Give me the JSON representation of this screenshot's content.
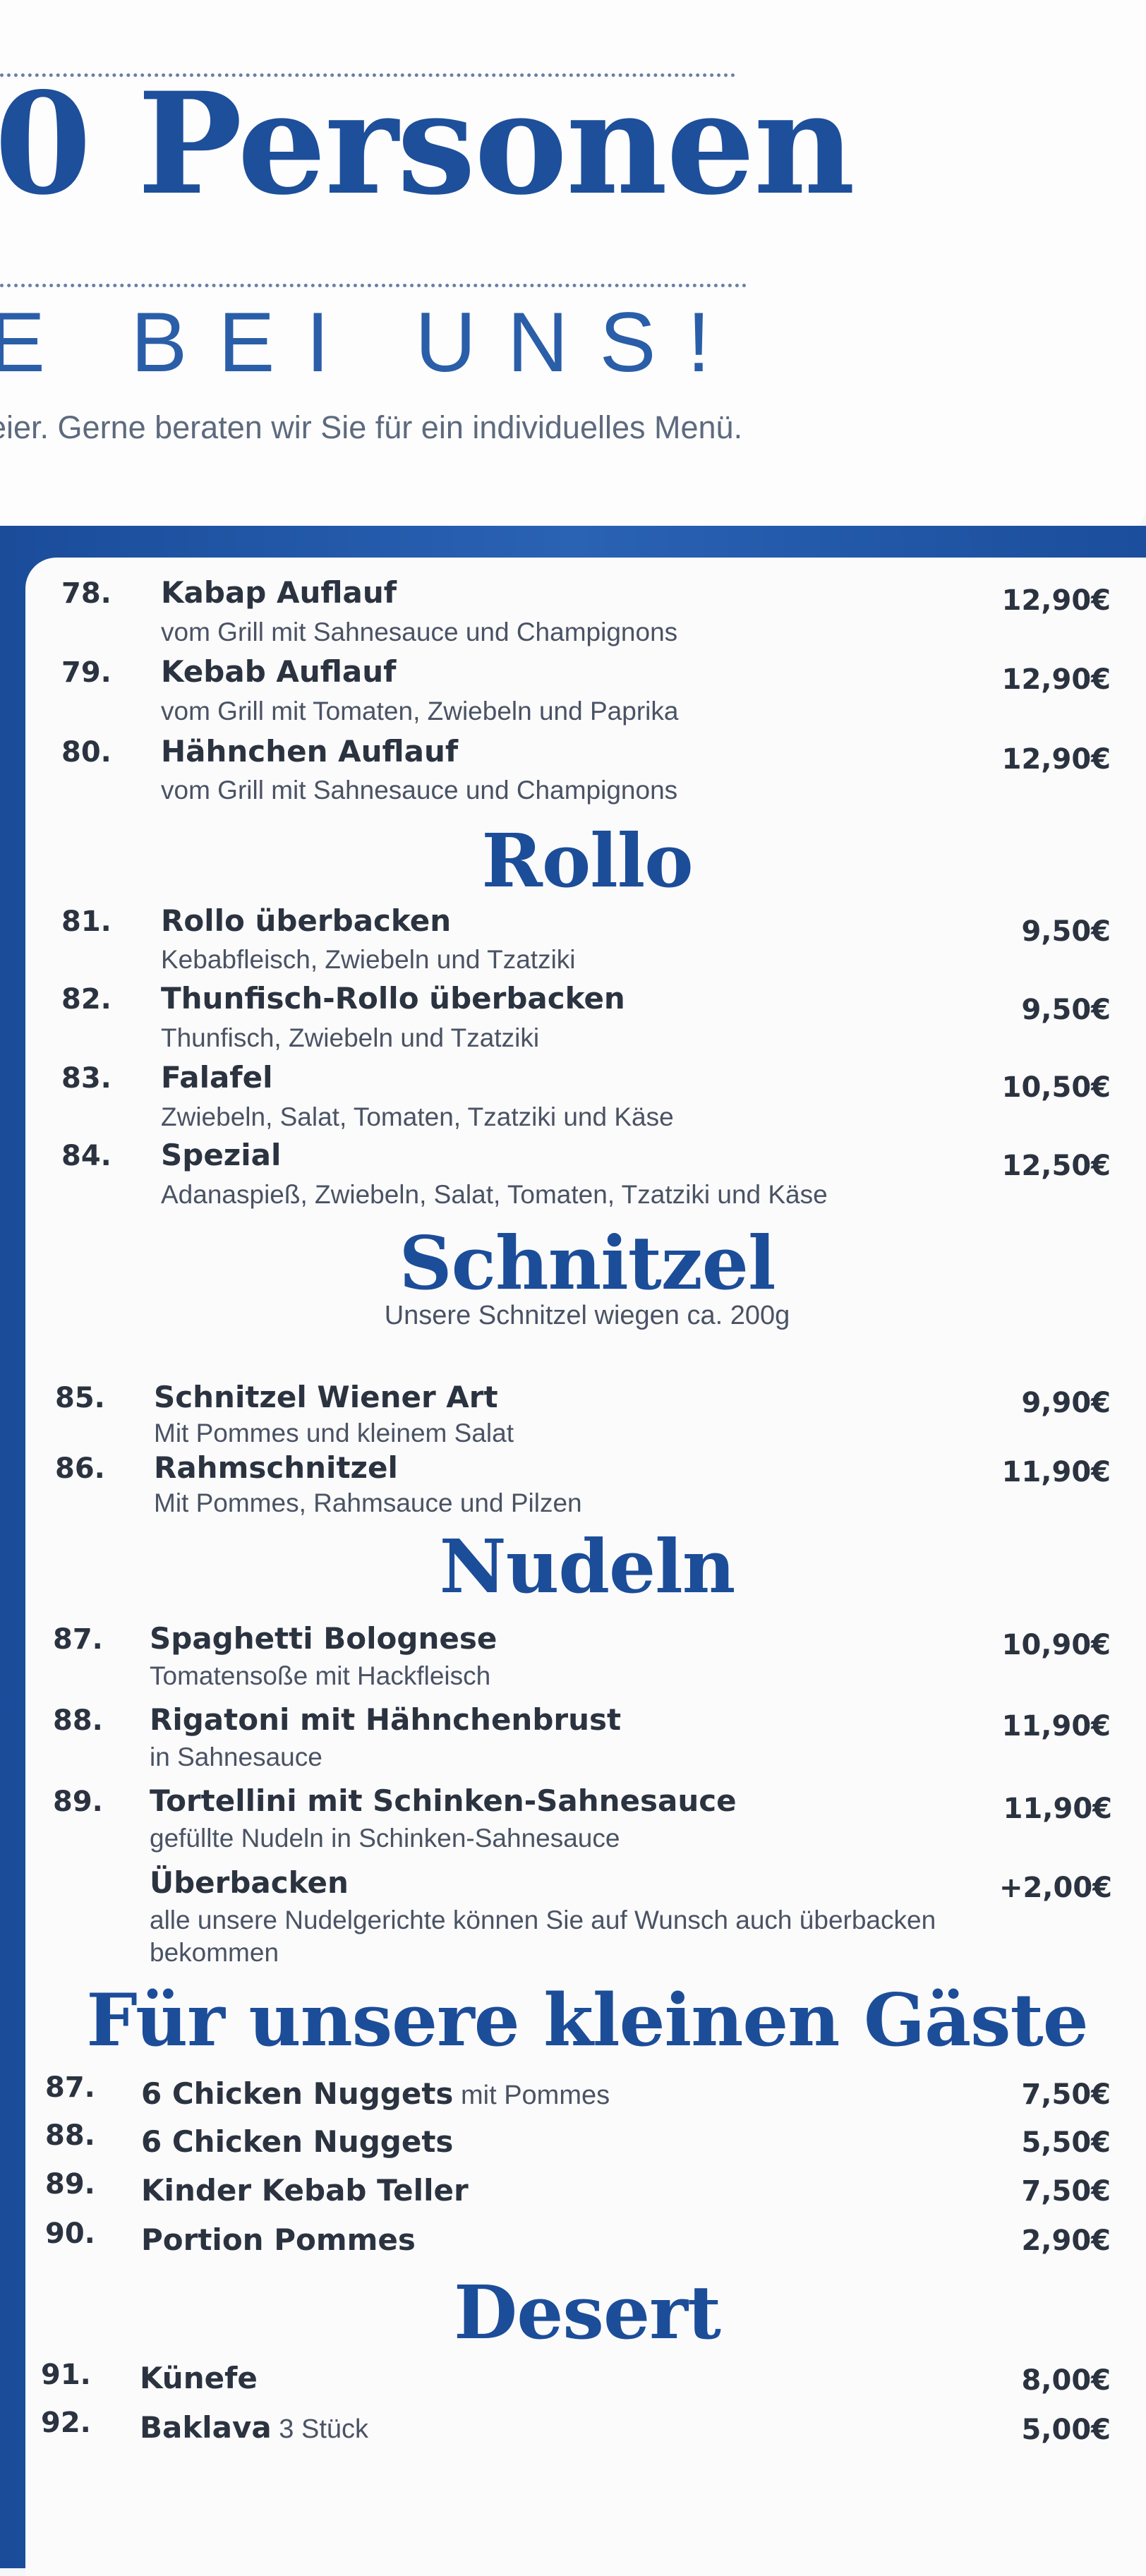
{
  "header": {
    "headline": "0 Personen",
    "subheadline": "E BEI UNS!",
    "intro": "eier. Gerne beraten wir Sie für ein individuelles Menü."
  },
  "items_top": [
    {
      "num": "78.",
      "name": "Kabap Auflauf",
      "desc": "vom Grill mit Sahnesauce und Champignons",
      "price": "12,90€"
    },
    {
      "num": "79.",
      "name": "Kebab Auflauf",
      "desc": "vom Grill mit Tomaten, Zwiebeln und Paprika",
      "price": "12,90€"
    },
    {
      "num": "80.",
      "name": "Hähnchen Auflauf",
      "desc": "vom Grill mit Sahnesauce und Champignons",
      "price": "12,90€"
    }
  ],
  "rollo": {
    "title": "Rollo",
    "items": [
      {
        "num": "81.",
        "name": "Rollo überbacken",
        "desc": "Kebabfleisch, Zwiebeln und Tzatziki",
        "price": "9,50€"
      },
      {
        "num": "82.",
        "name": "Thunfisch-Rollo überbacken",
        "desc": "Thunfisch, Zwiebeln und Tzatziki",
        "price": "9,50€"
      },
      {
        "num": "83.",
        "name": "Falafel",
        "desc": "Zwiebeln, Salat, Tomaten, Tzatziki und Käse",
        "price": "10,50€"
      },
      {
        "num": "84.",
        "name": "Spezial",
        "desc": "Adanaspieß, Zwiebeln, Salat, Tomaten, Tzatziki und Käse",
        "price": "12,50€"
      }
    ]
  },
  "schnitzel": {
    "title": "Schnitzel",
    "subtitle": "Unsere Schnitzel wiegen ca. 200g",
    "items": [
      {
        "num": "85.",
        "name": "Schnitzel Wiener Art",
        "desc": "Mit Pommes und kleinem Salat",
        "price": "9,90€"
      },
      {
        "num": "86.",
        "name": "Rahmschnitzel",
        "desc": "Mit Pommes, Rahmsauce und Pilzen",
        "price": "11,90€"
      }
    ]
  },
  "nudeln": {
    "title": "Nudeln",
    "items": [
      {
        "num": "87.",
        "name": "Spaghetti Bolognese",
        "desc": "Tomatensoße mit Hackfleisch",
        "price": "10,90€"
      },
      {
        "num": "88.",
        "name": "Rigatoni mit Hähnchenbrust",
        "desc": "in Sahnesauce",
        "price": "11,90€"
      },
      {
        "num": "89.",
        "name": "Tortellini mit Schinken-Sahnesauce",
        "desc": "gefüllte Nudeln in Schinken-Sahnesauce",
        "price": "11,90€"
      }
    ],
    "extra": {
      "name": "Überbacken",
      "desc_line1": "alle unsere Nudelgerichte können Sie auf Wunsch auch überbacken",
      "desc_line2": "bekommen",
      "price": "+2,00€"
    }
  },
  "kids": {
    "title": "Für unsere kleinen Gäste",
    "items": [
      {
        "num": "87.",
        "name": "6 Chicken Nuggets",
        "suffix": " mit Pommes",
        "price": "7,50€"
      },
      {
        "num": "88.",
        "name": "6 Chicken Nuggets",
        "suffix": "",
        "price": "5,50€"
      },
      {
        "num": "89.",
        "name": "Kinder Kebab Teller",
        "suffix": "",
        "price": "7,50€"
      },
      {
        "num": "90.",
        "name": "Portion Pommes",
        "suffix": "",
        "price": "2,90€"
      }
    ]
  },
  "desert": {
    "title": "Desert",
    "items": [
      {
        "num": "91.",
        "name": "Künefe",
        "suffix": "",
        "price": "8,00€"
      },
      {
        "num": "92.",
        "name": "Baklava",
        "suffix": " 3 Stück",
        "price": "5,00€"
      }
    ]
  }
}
